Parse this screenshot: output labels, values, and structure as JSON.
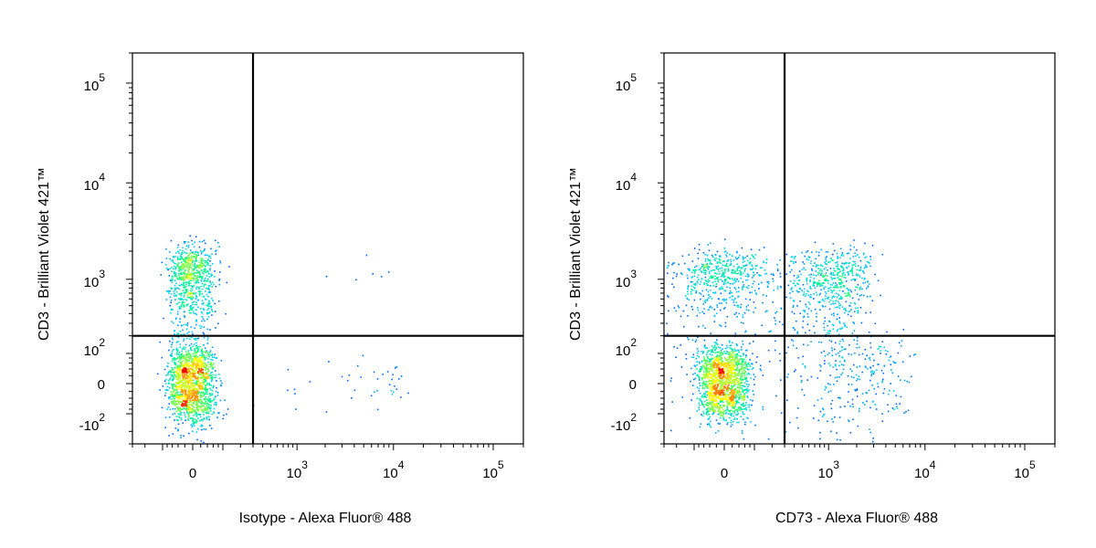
{
  "chart_data": [
    {
      "type": "scatter",
      "subtype": "flow-cytometry-density-dot-plot",
      "xlabel": "Isotype - Alexa Fluor® 488",
      "ylabel": "CD3 - Brilliant Violet 421™",
      "x_ticks": [
        {
          "label": "0",
          "sup": ""
        },
        {
          "label": "10",
          "sup": "3"
        },
        {
          "label": "10",
          "sup": "4"
        },
        {
          "label": "10",
          "sup": "5"
        }
      ],
      "y_ticks": [
        {
          "label": "-10",
          "sup": "2"
        },
        {
          "label": "0",
          "sup": ""
        },
        {
          "label": "10",
          "sup": "2"
        },
        {
          "label": "10",
          "sup": "3"
        },
        {
          "label": "10",
          "sup": "4"
        },
        {
          "label": "10",
          "sup": "5"
        }
      ],
      "xlim": [
        -300,
        200000
      ],
      "ylim": [
        -300,
        200000
      ],
      "scale": "biexponential",
      "gate": {
        "x": 300,
        "y": 200
      },
      "colormap": [
        "#0000ff",
        "#00c8ff",
        "#00ff80",
        "#ffff00",
        "#ff0000"
      ],
      "populations": [
        {
          "x_center": -5,
          "y_center": 5,
          "x_spread": 35,
          "y_spread": 60,
          "count": 1400
        },
        {
          "x_center": -5,
          "y_center": 900,
          "x_spread": 35,
          "y_spread": 700,
          "count": 900
        },
        {
          "x_center": 6000,
          "y_center": -10,
          "x_spread": 5000,
          "y_spread": 45,
          "count": 45
        },
        {
          "x_center": 3000,
          "y_center": 1300,
          "x_spread": 5000,
          "y_spread": 300,
          "count": 6
        }
      ]
    },
    {
      "type": "scatter",
      "subtype": "flow-cytometry-density-dot-plot",
      "xlabel": "CD73 - Alexa Fluor® 488",
      "ylabel": "CD3 - Brilliant Violet 421™",
      "x_ticks": [
        {
          "label": "0",
          "sup": ""
        },
        {
          "label": "10",
          "sup": "3"
        },
        {
          "label": "10",
          "sup": "4"
        },
        {
          "label": "10",
          "sup": "5"
        }
      ],
      "y_ticks": [
        {
          "label": "-10",
          "sup": "2"
        },
        {
          "label": "0",
          "sup": ""
        },
        {
          "label": "10",
          "sup": "2"
        },
        {
          "label": "10",
          "sup": "3"
        },
        {
          "label": "10",
          "sup": "4"
        },
        {
          "label": "10",
          "sup": "5"
        }
      ],
      "xlim": [
        -300,
        200000
      ],
      "ylim": [
        -300,
        200000
      ],
      "scale": "biexponential",
      "gate": {
        "x": 300,
        "y": 200
      },
      "colormap": [
        "#0000ff",
        "#00c8ff",
        "#00ff80",
        "#ffff00",
        "#ff0000"
      ],
      "populations": [
        {
          "x_center": -5,
          "y_center": 5,
          "x_spread": 40,
          "y_spread": 60,
          "count": 1500
        },
        {
          "x_center": 0,
          "y_center": 1100,
          "x_spread": 60,
          "y_spread": 500,
          "count": 450
        },
        {
          "x_center": 700,
          "y_center": 800,
          "x_spread": 900,
          "y_spread": 600,
          "count": 1000
        },
        {
          "x_center": 900,
          "y_center": 30,
          "x_spread": 2500,
          "y_spread": 80,
          "count": 350
        }
      ]
    }
  ]
}
